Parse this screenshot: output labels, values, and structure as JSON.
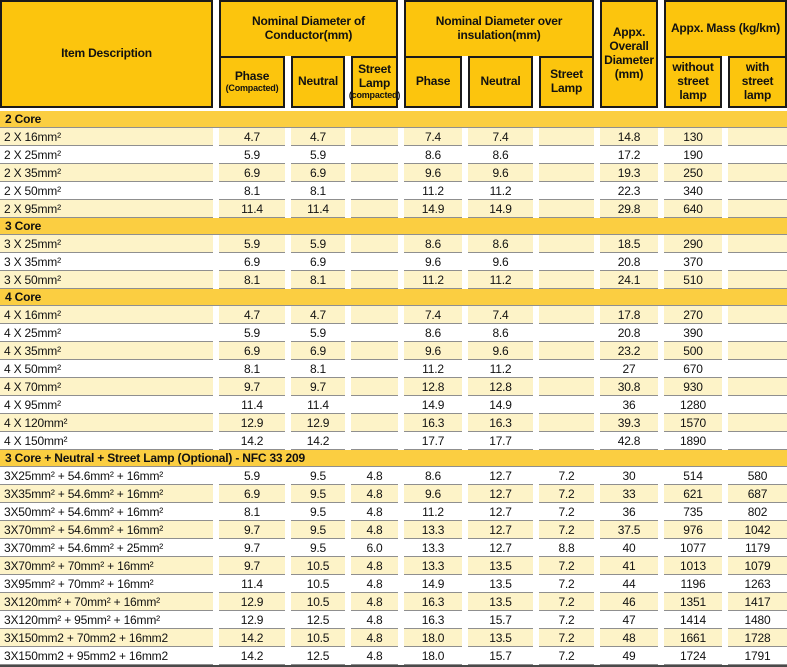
{
  "colors": {
    "header_gold": "#FCC50D",
    "section_band_gold": "#FBCE41",
    "row_stripe": "#FDF3C8",
    "cell_border_black": "#1A1A1A",
    "row_separator_gray": "#8F8F8F"
  },
  "header": {
    "item_description": "Item Description",
    "conductor_group": {
      "label": "Nominal Diameter of Conductor(mm)",
      "sub": [
        {
          "label": "Phase",
          "note": "(Compacted)"
        },
        {
          "label": "Neutral",
          "note": ""
        },
        {
          "label": "Street Lamp",
          "note": "(compacted)"
        }
      ]
    },
    "insulation_group": {
      "label": "Nominal Diameter over insulation(mm)",
      "sub": [
        {
          "label": "Phase",
          "note": ""
        },
        {
          "label": "Neutral",
          "note": ""
        },
        {
          "label": "Street Lamp",
          "note": ""
        }
      ]
    },
    "overall_diameter": "Appx. Overall Diameter (mm)",
    "mass_group": {
      "label": "Appx. Mass (kg/km)",
      "sub": [
        {
          "label": "without street lamp",
          "note": ""
        },
        {
          "label": "with street lamp",
          "note": ""
        }
      ]
    }
  },
  "sections": [
    {
      "title": "2 Core",
      "first_row_striped": true,
      "rows": [
        {
          "desc": "2 X 16mm²",
          "values": [
            "4.7",
            "4.7",
            "",
            "7.4",
            "7.4",
            "",
            "14.8",
            "130",
            ""
          ]
        },
        {
          "desc": "2 X 25mm²",
          "values": [
            "5.9",
            "5.9",
            "",
            "8.6",
            "8.6",
            "",
            "17.2",
            "190",
            ""
          ]
        },
        {
          "desc": "2 X 35mm²",
          "values": [
            "6.9",
            "6.9",
            "",
            "9.6",
            "9.6",
            "",
            "19.3",
            "250",
            ""
          ]
        },
        {
          "desc": "2 X 50mm²",
          "values": [
            "8.1",
            "8.1",
            "",
            "11.2",
            "11.2",
            "",
            "22.3",
            "340",
            ""
          ]
        },
        {
          "desc": "2 X 95mm²",
          "values": [
            "11.4",
            "11.4",
            "",
            "14.9",
            "14.9",
            "",
            "29.8",
            "640",
            ""
          ]
        }
      ]
    },
    {
      "title": "3 Core",
      "first_row_striped": true,
      "rows": [
        {
          "desc": "3 X 25mm²",
          "values": [
            "5.9",
            "5.9",
            "",
            "8.6",
            "8.6",
            "",
            "18.5",
            "290",
            ""
          ]
        },
        {
          "desc": "3 X 35mm²",
          "values": [
            "6.9",
            "6.9",
            "",
            "9.6",
            "9.6",
            "",
            "20.8",
            "370",
            ""
          ]
        },
        {
          "desc": "3 X 50mm²",
          "values": [
            "8.1",
            "8.1",
            "",
            "11.2",
            "11.2",
            "",
            "24.1",
            "510",
            ""
          ]
        }
      ]
    },
    {
      "title": "4 Core",
      "first_row_striped": true,
      "rows": [
        {
          "desc": "4 X 16mm²",
          "values": [
            "4.7",
            "4.7",
            "",
            "7.4",
            "7.4",
            "",
            "17.8",
            "270",
            ""
          ]
        },
        {
          "desc": "4 X 25mm²",
          "values": [
            "5.9",
            "5.9",
            "",
            "8.6",
            "8.6",
            "",
            "20.8",
            "390",
            ""
          ]
        },
        {
          "desc": "4 X 35mm²",
          "values": [
            "6.9",
            "6.9",
            "",
            "9.6",
            "9.6",
            "",
            "23.2",
            "500",
            ""
          ]
        },
        {
          "desc": "4 X 50mm²",
          "values": [
            "8.1",
            "8.1",
            "",
            "11.2",
            "11.2",
            "",
            "27",
            "670",
            ""
          ]
        },
        {
          "desc": "4 X 70mm²",
          "values": [
            "9.7",
            "9.7",
            "",
            "12.8",
            "12.8",
            "",
            "30.8",
            "930",
            ""
          ]
        },
        {
          "desc": "4 X 95mm²",
          "values": [
            "11.4",
            "11.4",
            "",
            "14.9",
            "14.9",
            "",
            "36",
            "1280",
            ""
          ]
        },
        {
          "desc": "4 X 120mm²",
          "values": [
            "12.9",
            "12.9",
            "",
            "16.3",
            "16.3",
            "",
            "39.3",
            "1570",
            ""
          ]
        },
        {
          "desc": "4 X 150mm²",
          "values": [
            "14.2",
            "14.2",
            "",
            "17.7",
            "17.7",
            "",
            "42.8",
            "1890",
            ""
          ]
        }
      ]
    },
    {
      "title": "3 Core + Neutral + Street Lamp (Optional) - NFC 33 209",
      "first_row_striped": false,
      "rows": [
        {
          "desc": "3X25mm² + 54.6mm² + 16mm²",
          "values": [
            "5.9",
            "9.5",
            "4.8",
            "8.6",
            "12.7",
            "7.2",
            "30",
            "514",
            "580"
          ]
        },
        {
          "desc": "3X35mm² + 54.6mm² + 16mm²",
          "values": [
            "6.9",
            "9.5",
            "4.8",
            "9.6",
            "12.7",
            "7.2",
            "33",
            "621",
            "687"
          ]
        },
        {
          "desc": "3X50mm² + 54.6mm² + 16mm²",
          "values": [
            "8.1",
            "9.5",
            "4.8",
            "11.2",
            "12.7",
            "7.2",
            "36",
            "735",
            "802"
          ]
        },
        {
          "desc": "3X70mm² + 54.6mm² + 16mm²",
          "values": [
            "9.7",
            "9.5",
            "4.8",
            "13.3",
            "12.7",
            "7.2",
            "37.5",
            "976",
            "1042"
          ]
        },
        {
          "desc": "3X70mm² + 54.6mm² + 25mm²",
          "values": [
            "9.7",
            "9.5",
            "6.0",
            "13.3",
            "12.7",
            "8.8",
            "40",
            "1077",
            "1179"
          ]
        },
        {
          "desc": "3X70mm² + 70mm² + 16mm²",
          "values": [
            "9.7",
            "10.5",
            "4.8",
            "13.3",
            "13.5",
            "7.2",
            "41",
            "1013",
            "1079"
          ]
        },
        {
          "desc": "3X95mm² + 70mm² + 16mm²",
          "values": [
            "11.4",
            "10.5",
            "4.8",
            "14.9",
            "13.5",
            "7.2",
            "44",
            "1196",
            "1263"
          ]
        },
        {
          "desc": "3X120mm² + 70mm² + 16mm²",
          "values": [
            "12.9",
            "10.5",
            "4.8",
            "16.3",
            "13.5",
            "7.2",
            "46",
            "1351",
            "1417"
          ]
        },
        {
          "desc": "3X120mm² + 95mm² + 16mm²",
          "values": [
            "12.9",
            "12.5",
            "4.8",
            "16.3",
            "15.7",
            "7.2",
            "47",
            "1414",
            "1480"
          ]
        },
        {
          "desc": "3X150mm2 + 70mm2 + 16mm2",
          "values": [
            "14.2",
            "10.5",
            "4.8",
            "18.0",
            "13.5",
            "7.2",
            "48",
            "1661",
            "1728"
          ]
        },
        {
          "desc": "3X150mm2 + 95mm2 + 16mm2",
          "values": [
            "14.2",
            "12.5",
            "4.8",
            "18.0",
            "15.7",
            "7.2",
            "49",
            "1724",
            "1791"
          ]
        }
      ]
    }
  ]
}
